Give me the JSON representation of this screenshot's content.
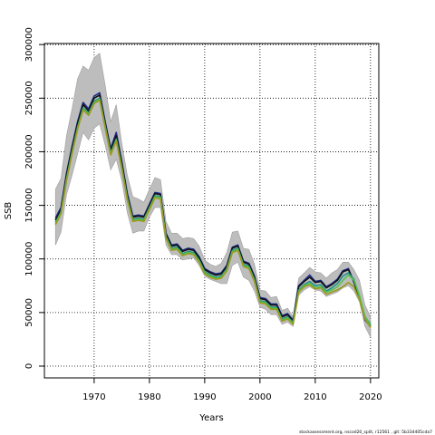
{
  "chart_data": {
    "type": "line",
    "title": "",
    "xlabel": "Years",
    "ylabel": "SSB",
    "xlim": [
      1961,
      2021.5
    ],
    "ylim": [
      -11000,
      301000
    ],
    "x_ticks": [
      1970,
      1980,
      1990,
      2000,
      2010,
      2020
    ],
    "y_ticks": [
      0,
      50000,
      100000,
      150000,
      200000,
      250000,
      300000
    ],
    "grid": "dotted",
    "footer": "stockassessment.org, nscod20_split, r12561 , git: 5b334405cda7",
    "years": [
      1963,
      1964,
      1965,
      1966,
      1967,
      1968,
      1969,
      1970,
      1971,
      1972,
      1973,
      1974,
      1975,
      1976,
      1977,
      1978,
      1979,
      1980,
      1981,
      1982,
      1983,
      1984,
      1985,
      1986,
      1987,
      1988,
      1989,
      1990,
      1991,
      1992,
      1993,
      1994,
      1995,
      1996,
      1997,
      1998,
      1999,
      2000,
      2001,
      2002,
      2003,
      2004,
      2005,
      2006,
      2007,
      2008,
      2009,
      2010,
      2011,
      2012,
      2013,
      2014,
      2015,
      2016,
      2017,
      2018,
      2019,
      2020
    ],
    "band": {
      "upper": [
        165000,
        175000,
        215000,
        240000,
        268000,
        280000,
        276000,
        288000,
        292000,
        262000,
        228000,
        244000,
        208000,
        178000,
        158000,
        156000,
        153000,
        165000,
        176000,
        174000,
        135000,
        124000,
        124000,
        119000,
        120000,
        119000,
        112000,
        99000,
        95000,
        93000,
        96000,
        106000,
        125000,
        126000,
        110000,
        109000,
        95000,
        71000,
        70000,
        64000,
        65000,
        52000,
        54000,
        46000,
        82000,
        87000,
        92000,
        88000,
        87000,
        82000,
        87000,
        90000,
        97000,
        97000,
        90000,
        80000,
        57000,
        46000
      ],
      "lower": [
        113000,
        125000,
        160000,
        178000,
        198000,
        218000,
        211000,
        222000,
        226000,
        206000,
        183000,
        193000,
        173000,
        143000,
        124000,
        126000,
        126000,
        139000,
        148000,
        148000,
        113000,
        104000,
        104000,
        99000,
        100000,
        101000,
        94000,
        84000,
        81000,
        79000,
        77000,
        77000,
        94000,
        97000,
        83000,
        80000,
        70000,
        55000,
        53000,
        48000,
        48000,
        39000,
        41000,
        37000,
        66000,
        71000,
        74000,
        71000,
        70000,
        65000,
        67000,
        69000,
        73000,
        75000,
        70000,
        60000,
        37000,
        27000
      ]
    },
    "series": [
      {
        "color": "#1c2b8a",
        "values": [
          138000,
          148000,
          180000,
          205000,
          228000,
          246000,
          240000,
          252000,
          255000,
          228000,
          203000,
          218000,
          191000,
          161000,
          140000,
          141000,
          140000,
          151000,
          162000,
          161000,
          124000,
          113000,
          114000,
          108000,
          110000,
          109000,
          102000,
          91000,
          88000,
          86000,
          87000,
          94000,
          111000,
          113000,
          98000,
          96000,
          84000,
          64000,
          63000,
          58000,
          58000,
          47000,
          49000,
          43000,
          75000,
          80000,
          85000,
          79000,
          80000,
          74000,
          77000,
          81000,
          89000,
          91000,
          78000,
          64000,
          43000,
          37000
        ]
      },
      {
        "color": "#111111",
        "values": [
          136000,
          146000,
          178000,
          203000,
          226000,
          244000,
          238000,
          250000,
          253000,
          226000,
          201000,
          215000,
          189000,
          159000,
          139000,
          140000,
          139000,
          150000,
          161000,
          160000,
          123000,
          112000,
          113000,
          107000,
          109000,
          108000,
          101000,
          90000,
          87000,
          85000,
          86000,
          93000,
          110000,
          112000,
          97000,
          95000,
          83000,
          63000,
          62000,
          57000,
          57000,
          46000,
          48000,
          42000,
          74000,
          79000,
          83000,
          78000,
          79000,
          73000,
          76000,
          80000,
          88000,
          90000,
          79000,
          63000,
          45000,
          38000
        ]
      },
      {
        "color": "#1f8f8a",
        "values": [
          134000,
          144000,
          175000,
          200000,
          223000,
          241000,
          236000,
          247000,
          250000,
          224000,
          199000,
          212000,
          186000,
          157000,
          137000,
          138000,
          137000,
          148000,
          159000,
          158000,
          121000,
          110000,
          111000,
          105000,
          107000,
          106000,
          99000,
          88000,
          85000,
          83000,
          84000,
          91000,
          108000,
          110000,
          95000,
          93000,
          81000,
          61000,
          60000,
          55000,
          55000,
          44000,
          46000,
          41000,
          71000,
          76000,
          79000,
          75000,
          76000,
          70000,
          73000,
          77000,
          84000,
          87000,
          81000,
          65000,
          46000,
          39000
        ]
      },
      {
        "color": "#55c24a",
        "values": [
          133000,
          143000,
          174000,
          199000,
          222000,
          240000,
          235000,
          246000,
          249000,
          223000,
          198000,
          211000,
          185000,
          156000,
          136000,
          137000,
          136000,
          147000,
          158000,
          157000,
          120000,
          109000,
          110000,
          104000,
          106000,
          105000,
          98000,
          87000,
          84000,
          82000,
          83000,
          90000,
          107000,
          109000,
          94000,
          92000,
          80000,
          60000,
          59000,
          54000,
          54000,
          43000,
          45000,
          40000,
          70000,
          75000,
          77000,
          73000,
          74000,
          69000,
          71000,
          74000,
          80000,
          85000,
          80000,
          66000,
          46000,
          38000
        ]
      },
      {
        "color": "#9a9a1e",
        "values": [
          132000,
          142000,
          173000,
          198000,
          221000,
          239000,
          234000,
          245000,
          248000,
          222000,
          197000,
          210000,
          184000,
          155000,
          135000,
          136000,
          135000,
          146000,
          157000,
          156000,
          119000,
          108000,
          109000,
          103000,
          105000,
          104000,
          97000,
          86000,
          83000,
          81000,
          82000,
          89000,
          106000,
          108000,
          93000,
          91000,
          79000,
          59000,
          58000,
          53000,
          53000,
          42000,
          44000,
          39000,
          69000,
          74000,
          76000,
          72000,
          73000,
          67000,
          69000,
          71000,
          74000,
          78000,
          74000,
          62000,
          44000,
          36000
        ]
      }
    ]
  }
}
